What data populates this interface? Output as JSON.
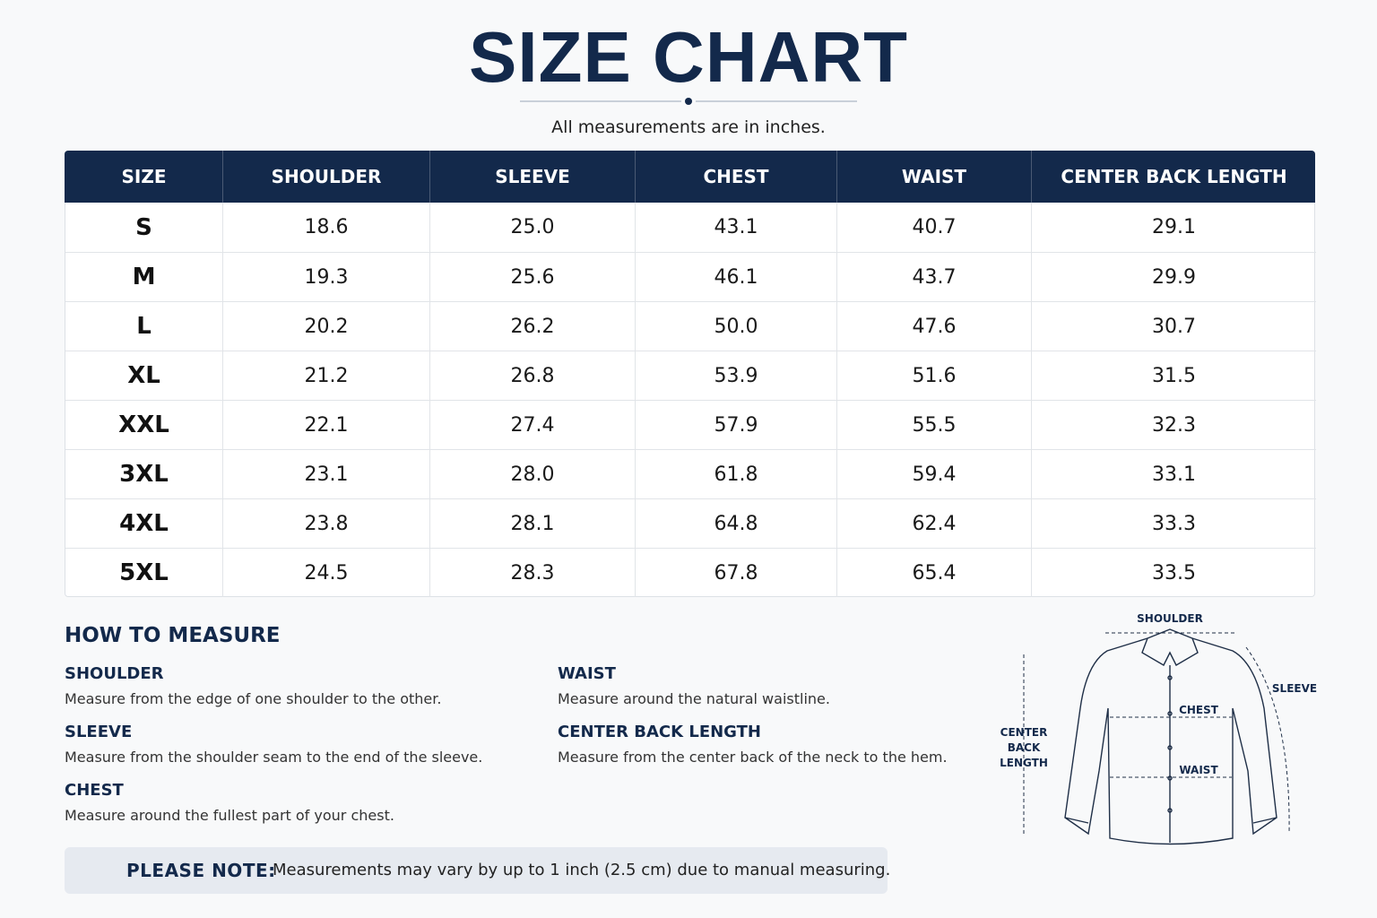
{
  "title": "SIZE CHART",
  "subtitle": "All measurements are in inches.",
  "table": {
    "header": [
      "SIZE",
      "SHOULDER",
      "SLEEVE",
      "CHEST",
      "WAIST",
      "CENTER BACK LENGTH"
    ],
    "rows": [
      [
        "S",
        "18.6",
        "25.0",
        "43.1",
        "40.7",
        "29.1"
      ],
      [
        "M",
        "19.3",
        "25.6",
        "46.1",
        "43.7",
        "29.9"
      ],
      [
        "L",
        "20.2",
        "26.2",
        "50.0",
        "47.6",
        "30.7"
      ],
      [
        "XL",
        "21.2",
        "26.8",
        "53.9",
        "51.6",
        "31.5"
      ],
      [
        "XXL",
        "22.1",
        "27.4",
        "57.9",
        "55.5",
        "32.3"
      ],
      [
        "3XL",
        "23.1",
        "28.0",
        "61.8",
        "59.4",
        "33.1"
      ],
      [
        "4XL",
        "23.8",
        "28.1",
        "64.8",
        "62.4",
        "33.3"
      ],
      [
        "5XL",
        "24.5",
        "28.3",
        "67.8",
        "65.4",
        "33.5"
      ]
    ]
  },
  "how_to_measure": {
    "title": "HOW TO MEASURE",
    "items": [
      {
        "name": "SHOULDER",
        "text": "Measure from the edge of one shoulder to the other."
      },
      {
        "name": "SLEEVE",
        "text": "Measure from the shoulder seam to the end of the sleeve."
      },
      {
        "name": "CHEST",
        "text": "Measure around the fullest part of your chest."
      },
      {
        "name": "WAIST",
        "text": "Measure around the natural waistline."
      },
      {
        "name": "CENTER BACK LENGTH",
        "text": "Measure from the center back of the neck to the hem."
      }
    ]
  },
  "note": {
    "label": "PLEASE NOTE:",
    "text": "Measurements may vary by up to 1 inch (2.5 cm) due to manual measuring."
  },
  "diagram": {
    "shoulder": "SHOULDER",
    "sleeve": "SLEEVE",
    "chest": "CHEST",
    "waist": "WAIST",
    "center_back_length": [
      "CENTER",
      "BACK",
      "LENGTH"
    ]
  }
}
